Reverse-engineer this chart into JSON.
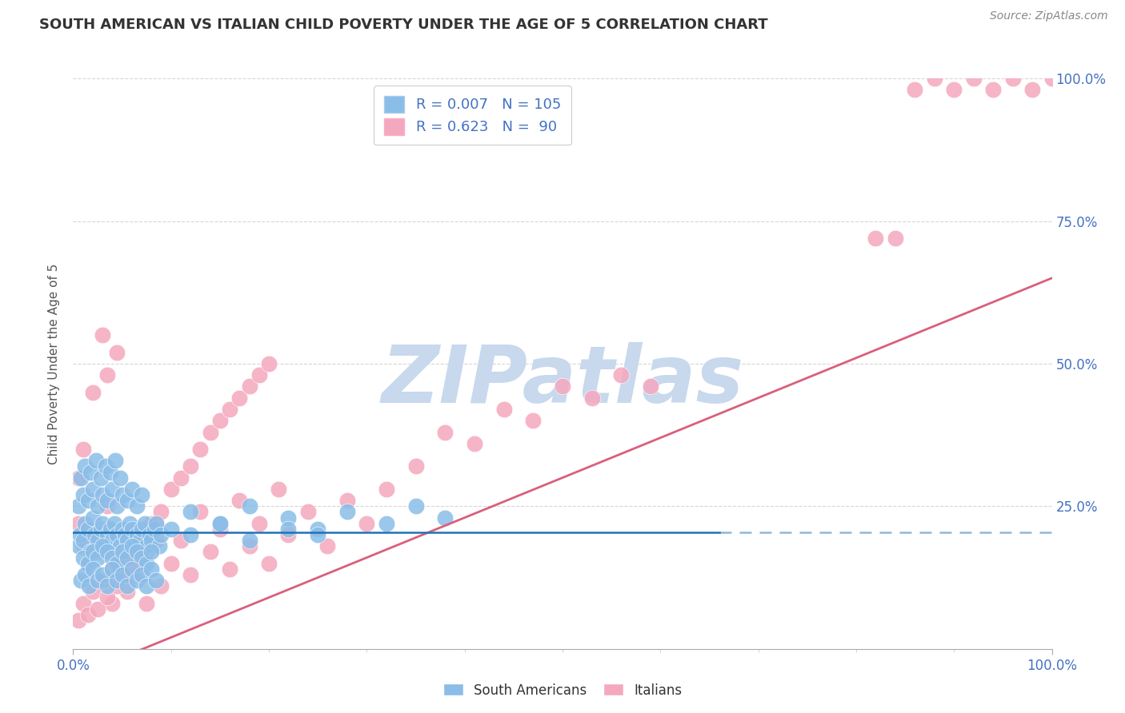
{
  "title": "SOUTH AMERICAN VS ITALIAN CHILD POVERTY UNDER THE AGE OF 5 CORRELATION CHART",
  "source": "Source: ZipAtlas.com",
  "ylabel": "Child Poverty Under the Age of 5",
  "xlim": [
    0,
    1
  ],
  "ylim": [
    0,
    1
  ],
  "xtick_labels": [
    "0.0%",
    "100.0%"
  ],
  "xtick_positions": [
    0,
    1
  ],
  "right_ytick_labels": [
    "25.0%",
    "50.0%",
    "75.0%",
    "100.0%"
  ],
  "right_ytick_positions": [
    0.25,
    0.5,
    0.75,
    1.0
  ],
  "sa_R": 0.007,
  "sa_N": 105,
  "it_R": 0.623,
  "it_N": 90,
  "blue_scatter_color": "#8abde8",
  "pink_scatter_color": "#f4a8be",
  "blue_line_color": "#2171b5",
  "pink_line_color": "#d9607a",
  "watermark_color": "#c8d8ed",
  "title_color": "#333333",
  "axis_label_color": "#555555",
  "tick_color": "#4472c4",
  "grid_color": "#cccccc",
  "background_color": "#ffffff",
  "legend_label_color": "#4472c4",
  "sa_x": [
    0.005,
    0.007,
    0.01,
    0.012,
    0.015,
    0.018,
    0.02,
    0.022,
    0.025,
    0.028,
    0.03,
    0.032,
    0.035,
    0.038,
    0.04,
    0.042,
    0.045,
    0.048,
    0.05,
    0.053,
    0.055,
    0.058,
    0.06,
    0.063,
    0.065,
    0.068,
    0.07,
    0.073,
    0.075,
    0.078,
    0.08,
    0.083,
    0.085,
    0.088,
    0.09,
    0.01,
    0.015,
    0.02,
    0.025,
    0.03,
    0.035,
    0.04,
    0.045,
    0.05,
    0.055,
    0.06,
    0.065,
    0.07,
    0.075,
    0.08,
    0.005,
    0.01,
    0.015,
    0.02,
    0.025,
    0.03,
    0.035,
    0.04,
    0.045,
    0.05,
    0.055,
    0.06,
    0.065,
    0.07,
    0.008,
    0.012,
    0.018,
    0.023,
    0.028,
    0.033,
    0.038,
    0.043,
    0.048,
    0.12,
    0.15,
    0.18,
    0.22,
    0.25,
    0.28,
    0.32,
    0.35,
    0.38,
    0.008,
    0.012,
    0.016,
    0.02,
    0.025,
    0.03,
    0.035,
    0.04,
    0.045,
    0.05,
    0.055,
    0.06,
    0.065,
    0.07,
    0.075,
    0.08,
    0.085,
    0.1,
    0.12,
    0.15,
    0.18,
    0.22,
    0.25
  ],
  "sa_y": [
    0.18,
    0.2,
    0.19,
    0.22,
    0.21,
    0.17,
    0.23,
    0.2,
    0.19,
    0.21,
    0.22,
    0.18,
    0.2,
    0.21,
    0.19,
    0.22,
    0.2,
    0.18,
    0.21,
    0.2,
    0.19,
    0.22,
    0.21,
    0.18,
    0.2,
    0.19,
    0.21,
    0.22,
    0.18,
    0.2,
    0.19,
    0.21,
    0.22,
    0.18,
    0.2,
    0.16,
    0.15,
    0.17,
    0.16,
    0.18,
    0.17,
    0.16,
    0.15,
    0.17,
    0.16,
    0.18,
    0.17,
    0.16,
    0.15,
    0.17,
    0.25,
    0.27,
    0.26,
    0.28,
    0.25,
    0.27,
    0.26,
    0.28,
    0.25,
    0.27,
    0.26,
    0.28,
    0.25,
    0.27,
    0.3,
    0.32,
    0.31,
    0.33,
    0.3,
    0.32,
    0.31,
    0.33,
    0.3,
    0.24,
    0.22,
    0.25,
    0.23,
    0.21,
    0.24,
    0.22,
    0.25,
    0.23,
    0.12,
    0.13,
    0.11,
    0.14,
    0.12,
    0.13,
    0.11,
    0.14,
    0.12,
    0.13,
    0.11,
    0.14,
    0.12,
    0.13,
    0.11,
    0.14,
    0.12,
    0.21,
    0.2,
    0.22,
    0.19,
    0.21,
    0.2
  ],
  "it_x": [
    0.005,
    0.01,
    0.015,
    0.02,
    0.025,
    0.03,
    0.035,
    0.04,
    0.045,
    0.05,
    0.055,
    0.06,
    0.065,
    0.07,
    0.075,
    0.08,
    0.085,
    0.09,
    0.1,
    0.11,
    0.12,
    0.13,
    0.14,
    0.15,
    0.16,
    0.17,
    0.18,
    0.19,
    0.2,
    0.21,
    0.22,
    0.24,
    0.26,
    0.28,
    0.3,
    0.32,
    0.35,
    0.38,
    0.41,
    0.44,
    0.47,
    0.5,
    0.53,
    0.56,
    0.59,
    0.005,
    0.01,
    0.015,
    0.02,
    0.025,
    0.03,
    0.035,
    0.04,
    0.045,
    0.05,
    0.055,
    0.06,
    0.065,
    0.07,
    0.075,
    0.08,
    0.085,
    0.09,
    0.1,
    0.11,
    0.12,
    0.13,
    0.14,
    0.15,
    0.16,
    0.17,
    0.18,
    0.19,
    0.2,
    0.86,
    0.88,
    0.9,
    0.92,
    0.94,
    0.96,
    0.98,
    1.0,
    0.82,
    0.84,
    0.005,
    0.01,
    0.02,
    0.03,
    0.035,
    0.045
  ],
  "it_y": [
    0.22,
    0.18,
    0.15,
    0.2,
    0.17,
    0.12,
    0.25,
    0.08,
    0.19,
    0.14,
    0.1,
    0.16,
    0.13,
    0.2,
    0.08,
    0.18,
    0.22,
    0.11,
    0.15,
    0.19,
    0.13,
    0.24,
    0.17,
    0.21,
    0.14,
    0.26,
    0.18,
    0.22,
    0.15,
    0.28,
    0.2,
    0.24,
    0.18,
    0.26,
    0.22,
    0.28,
    0.32,
    0.38,
    0.36,
    0.42,
    0.4,
    0.46,
    0.44,
    0.48,
    0.46,
    0.05,
    0.08,
    0.06,
    0.1,
    0.07,
    0.12,
    0.09,
    0.14,
    0.11,
    0.16,
    0.13,
    0.18,
    0.15,
    0.2,
    0.17,
    0.22,
    0.19,
    0.24,
    0.28,
    0.3,
    0.32,
    0.35,
    0.38,
    0.4,
    0.42,
    0.44,
    0.46,
    0.48,
    0.5,
    0.98,
    1.0,
    0.98,
    1.0,
    0.98,
    1.0,
    0.98,
    1.0,
    0.72,
    0.72,
    0.3,
    0.35,
    0.45,
    0.55,
    0.48,
    0.52
  ]
}
